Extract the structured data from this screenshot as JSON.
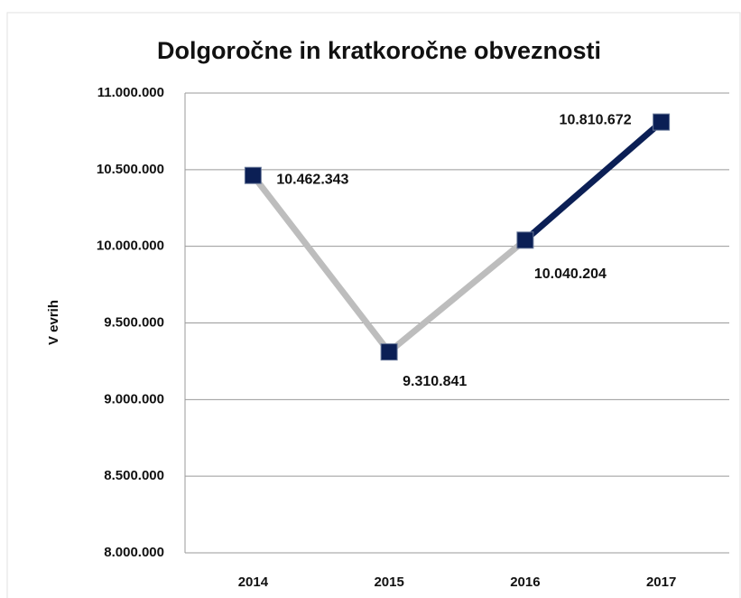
{
  "chart_data": {
    "type": "line",
    "title": "Dolgoročne in kratkoročne obveznosti",
    "y_label": "V evrih",
    "categories": [
      "2014",
      "2015",
      "2016",
      "2017"
    ],
    "series": [
      {
        "name": "Obveznosti",
        "color": "#0b1f55",
        "values": [
          10462343,
          9310841,
          10040204,
          10810672
        ],
        "value_labels": [
          "10.462.343",
          "9.310.841",
          "10.040.204",
          "10.810.672"
        ]
      }
    ],
    "segment_colors": [
      "#bdbdbd",
      "#bdbdbd",
      "#0b1f55"
    ],
    "ylim": [
      8000000,
      11000000
    ],
    "yticks": [
      {
        "value": 8000000,
        "label": "8.000.000"
      },
      {
        "value": 8500000,
        "label": "8.500.000"
      },
      {
        "value": 9000000,
        "label": "9.000.000"
      },
      {
        "value": 9500000,
        "label": "9.500.000"
      },
      {
        "value": 10000000,
        "label": "10.000.000"
      },
      {
        "value": 10500000,
        "label": "10.500.000"
      },
      {
        "value": 11000000,
        "label": "11.000.000"
      }
    ],
    "grid": true
  }
}
